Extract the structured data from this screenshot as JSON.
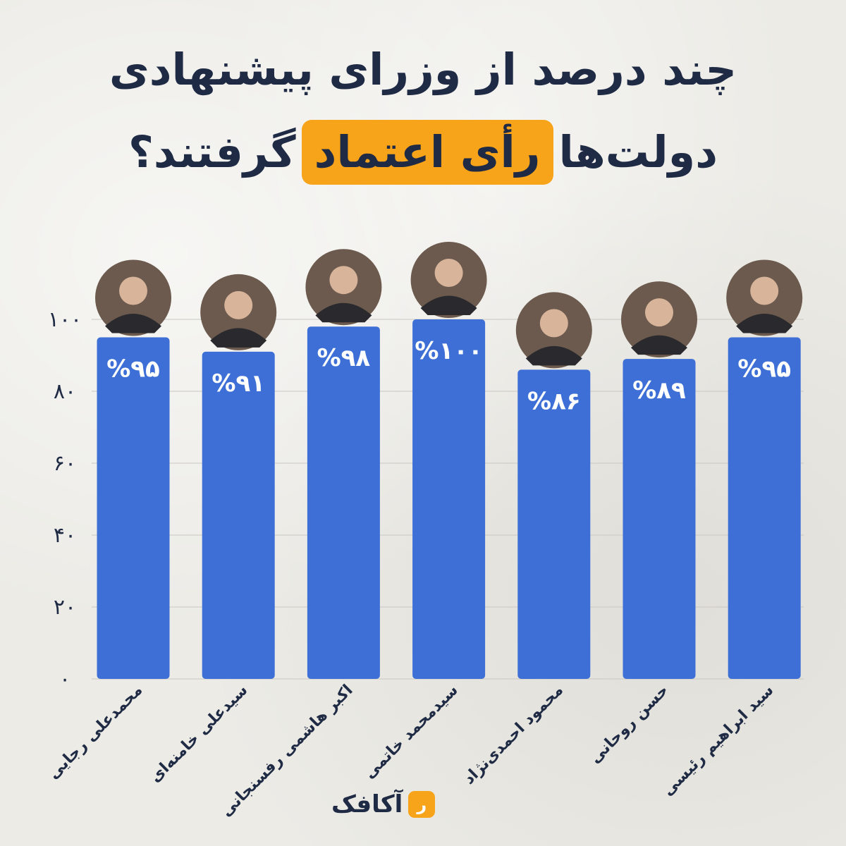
{
  "title": {
    "line1": "چند درصد از وزرای پیشنهادی",
    "line2_before": "دولت‌ها",
    "line2_highlight": "رأی اعتماد",
    "line2_after": "گرفتند؟"
  },
  "colors": {
    "bar": "#3d6fd6",
    "accent": "#f7a41a",
    "text": "#1f2a44",
    "grid": "#c9c7c0"
  },
  "chart_data": {
    "type": "bar",
    "categories": [
      "محمدعلی رجایی",
      "سیدعلی خامنه‌ای",
      "اکبر هاشمی رفسنجانی",
      "سیدمحمد خاتمی",
      "محمود احمدی‌نژاد",
      "حسن روحانی",
      "سید ابراهیم رئیسی"
    ],
    "values": [
      95,
      91,
      98,
      100,
      86,
      89,
      95
    ],
    "value_labels": [
      "%۹۵",
      "%۹۱",
      "%۹۸",
      "%۱۰۰",
      "%۸۶",
      "%۸۹",
      "%۹۵"
    ],
    "y_ticks": [
      0,
      20,
      40,
      60,
      80,
      100
    ],
    "y_tick_labels": [
      "۰",
      "۲۰",
      "۴۰",
      "۶۰",
      "۸۰",
      "۱۰۰"
    ],
    "ylim": [
      0,
      100
    ],
    "grid": true,
    "xlabel": "",
    "ylabel": "",
    "portrait_icons": [
      "portrait-icon",
      "portrait-icon",
      "portrait-icon",
      "portrait-icon",
      "portrait-icon",
      "portrait-icon",
      "portrait-icon"
    ]
  },
  "brand": {
    "name": "آکافک"
  }
}
